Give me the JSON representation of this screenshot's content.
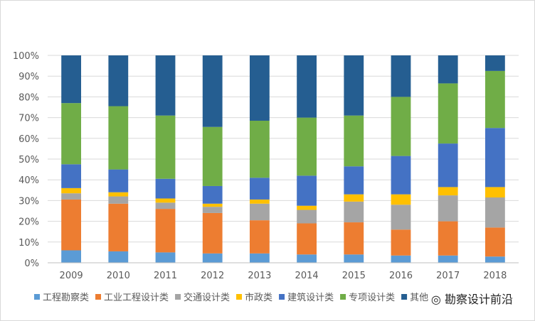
{
  "chart_data": {
    "type": "bar",
    "stacked": true,
    "percent": true,
    "title": "",
    "xlabel": "",
    "ylabel": "",
    "ylim": [
      0,
      100
    ],
    "yticks": [
      "0%",
      "10%",
      "20%",
      "30%",
      "40%",
      "50%",
      "60%",
      "70%",
      "80%",
      "90%",
      "100%"
    ],
    "categories": [
      "2009",
      "2010",
      "2011",
      "2012",
      "2013",
      "2014",
      "2015",
      "2016",
      "2017",
      "2018"
    ],
    "series": [
      {
        "name": "工程勘察类",
        "color": "#5B9BD5",
        "values": [
          6,
          5.5,
          5,
          4.5,
          4.5,
          4,
          4,
          3.5,
          3.5,
          3
        ]
      },
      {
        "name": "工业工程设计类",
        "color": "#ED7D31",
        "values": [
          24.5,
          23,
          21,
          19.5,
          16,
          15,
          15.5,
          12.5,
          16.5,
          14
        ]
      },
      {
        "name": "交通设计类",
        "color": "#A5A5A5",
        "values": [
          3,
          3.5,
          3,
          3,
          8,
          6.5,
          10,
          12,
          12.5,
          14.5
        ]
      },
      {
        "name": "市政类",
        "color": "#FFC000",
        "values": [
          2.5,
          2,
          2,
          1.5,
          2,
          2,
          3.5,
          5,
          4,
          5
        ]
      },
      {
        "name": "建筑设计类",
        "color": "#4472C4",
        "values": [
          11.5,
          11,
          9.5,
          8.5,
          10.5,
          14.5,
          13.5,
          18.5,
          21,
          28.5
        ]
      },
      {
        "name": "专项设计类",
        "color": "#70AD47",
        "values": [
          29.5,
          30.5,
          30.5,
          28.5,
          27.5,
          28,
          24.5,
          28.5,
          29,
          27.5
        ]
      },
      {
        "name": "其他",
        "color": "#255E91",
        "values": [
          23,
          24.5,
          29,
          34.5,
          31.5,
          30,
          29,
          20,
          13.5,
          7.5
        ]
      }
    ],
    "legend_position": "bottom",
    "gridlines": true
  },
  "watermark": {
    "text": "勘察设计前沿"
  }
}
